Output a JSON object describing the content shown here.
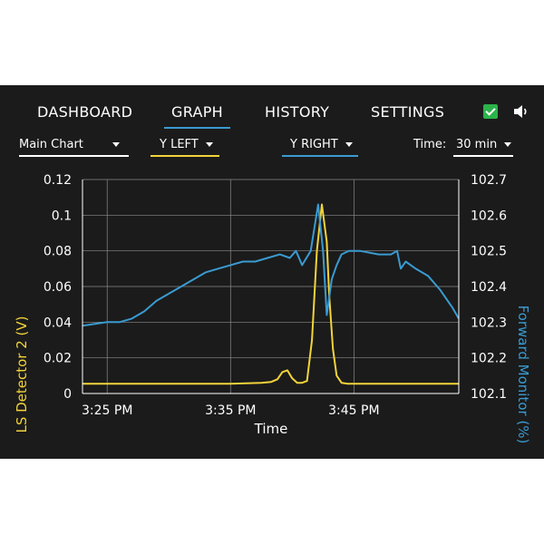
{
  "nav": {
    "tabs": [
      {
        "label": "DASHBOARD",
        "active": false
      },
      {
        "label": "GRAPH",
        "active": true
      },
      {
        "label": "HISTORY",
        "active": false
      },
      {
        "label": "SETTINGS",
        "active": false
      }
    ],
    "icons": [
      "checkbox-checked-icon",
      "speaker-icon"
    ]
  },
  "controls": {
    "chart_select": "Main Chart",
    "y_left": "Y LEFT",
    "y_right": "Y RIGHT",
    "time_label": "Time:",
    "time_value": "30 min"
  },
  "colors": {
    "background": "#1b1b1b",
    "left_series": "#f2d43a",
    "right_series": "#3a9bd1",
    "grid": "#8a8a8a",
    "check": "#2bb34a"
  },
  "chart_data": {
    "type": "line",
    "xlabel": "Time",
    "ylabel_left": "LS Detector 2 (V)",
    "ylabel_right": "Forward Monitor (%)",
    "x_ticks": [
      "3:25 PM",
      "3:35 PM",
      "3:45 PM"
    ],
    "y_left_ticks": [
      "0",
      "0.02",
      "0.04",
      "0.06",
      "0.08",
      "0.1",
      "0.12"
    ],
    "y_right_ticks": [
      "102.1",
      "102.2",
      "102.3",
      "102.4",
      "102.5",
      "102.6",
      "102.7"
    ],
    "ylim_left": [
      0,
      0.12
    ],
    "ylim_right": [
      102.1,
      102.7
    ],
    "xlim_minutes": [
      -2.0,
      28.5
    ],
    "x_unit": "minutes after 3:25 PM",
    "grid": true,
    "series": [
      {
        "name": "LS Detector 2 (V)",
        "axis": "left",
        "x": [
          -2,
          5,
          10,
          12.5,
          13.3,
          13.8,
          14.2,
          14.6,
          15,
          15.4,
          15.8,
          16.2,
          16.6,
          17,
          17.4,
          17.8,
          18,
          18.3,
          18.6,
          19,
          19.5,
          20,
          22,
          25,
          28.5
        ],
        "y": [
          0.0055,
          0.0055,
          0.0055,
          0.006,
          0.0065,
          0.008,
          0.012,
          0.013,
          0.0085,
          0.006,
          0.006,
          0.007,
          0.03,
          0.08,
          0.106,
          0.085,
          0.055,
          0.025,
          0.01,
          0.006,
          0.0055,
          0.0055,
          0.0055,
          0.0055,
          0.0055
        ]
      },
      {
        "name": "Forward Monitor (%)",
        "axis": "right",
        "x": [
          -2,
          0,
          1,
          2,
          3,
          4,
          5,
          6,
          7,
          8,
          9,
          10,
          11,
          12,
          13,
          14,
          14.8,
          15.3,
          15.8,
          16.5,
          17.1,
          17.5,
          17.8,
          18.2,
          18.6,
          19,
          19.6,
          20.5,
          22,
          23,
          23.5,
          23.8,
          24.2,
          25,
          26,
          27,
          28,
          28.5
        ],
        "y": [
          102.29,
          102.3,
          102.3,
          102.31,
          102.33,
          102.36,
          102.38,
          102.4,
          102.42,
          102.44,
          102.45,
          102.46,
          102.47,
          102.47,
          102.48,
          102.49,
          102.48,
          102.5,
          102.46,
          102.5,
          102.63,
          102.5,
          102.32,
          102.42,
          102.46,
          102.49,
          102.5,
          102.5,
          102.49,
          102.49,
          102.5,
          102.45,
          102.47,
          102.45,
          102.43,
          102.39,
          102.34,
          102.31
        ]
      }
    ]
  }
}
